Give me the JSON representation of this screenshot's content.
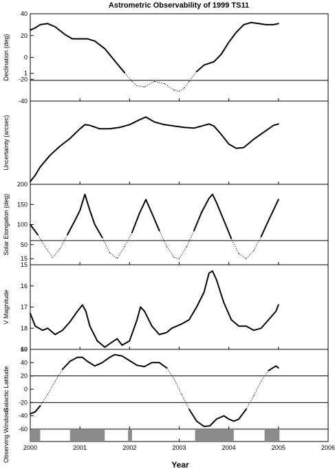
{
  "title": "Astrometric Observability of 1999 TS11",
  "xlabel": "Year",
  "x_ticks": [
    "2000",
    "2001",
    "2002",
    "2003",
    "2004",
    "2005",
    "2006"
  ],
  "chart_data": [
    {
      "type": "line",
      "ylabel": "Declination (deg)",
      "ylim": [
        -40,
        40
      ],
      "yticks": [
        40,
        20,
        0,
        -20,
        -40
      ],
      "threshold": [
        -21
      ],
      "series": [
        {
          "x": [
            2000.0,
            2000.1,
            2000.2,
            2000.35,
            2000.5,
            2000.7,
            2000.85,
            2001.0,
            2001.15,
            2001.3,
            2001.5,
            2001.7,
            2001.9,
            2002.05,
            2002.15,
            2002.3,
            2002.5,
            2002.7,
            2002.9,
            2003.0,
            2003.1,
            2003.2,
            2003.35,
            2003.5,
            2003.7,
            2003.85,
            2004.0,
            2004.15,
            2004.3,
            2004.45,
            2004.6,
            2004.75,
            2004.9,
            2005.0
          ],
          "y": [
            25,
            27,
            30,
            31,
            28,
            21,
            17,
            17,
            17,
            15,
            8,
            -3,
            -14,
            -22,
            -26,
            -27,
            -22,
            -24,
            -30,
            -31,
            -28,
            -22,
            -13,
            -7,
            -4,
            3,
            14,
            23,
            30,
            32,
            31,
            30,
            30,
            31
          ]
        }
      ]
    },
    {
      "type": "line",
      "ylabel": "Uncertainty (arcsec)",
      "ylim": [
        -0.6,
        0.6
      ],
      "yticks": [
        1
      ],
      "threshold": [],
      "series": [
        {
          "x": [
            2000.0,
            2000.1,
            2000.2,
            2000.4,
            2000.6,
            2000.8,
            2001.0,
            2001.1,
            2001.2,
            2001.4,
            2001.6,
            2001.8,
            2002.0,
            2002.2,
            2002.33,
            2002.5,
            2002.7,
            2002.9,
            2003.1,
            2003.3,
            2003.5,
            2003.6,
            2003.7,
            2003.8,
            2003.9,
            2004.0,
            2004.15,
            2004.3,
            2004.5,
            2004.7,
            2004.9,
            2005.0
          ],
          "y": [
            -0.56,
            -0.47,
            -0.35,
            -0.18,
            -0.05,
            0.06,
            0.2,
            0.26,
            0.25,
            0.2,
            0.2,
            0.22,
            0.26,
            0.33,
            0.37,
            0.3,
            0.26,
            0.24,
            0.22,
            0.21,
            0.25,
            0.27,
            0.24,
            0.16,
            0.07,
            -0.02,
            -0.08,
            -0.07,
            0.05,
            0.15,
            0.25,
            0.27
          ]
        }
      ]
    },
    {
      "type": "line",
      "ylabel": "Solar Elongation (deg)",
      "ylim": [
        0,
        200
      ],
      "yticks": [
        200,
        150,
        100,
        50,
        15
      ],
      "threshold": [
        60
      ],
      "series": [
        {
          "x": [
            2000.0,
            2000.15,
            2000.3,
            2000.45,
            2000.6,
            2000.75,
            2000.9,
            2001.0,
            2001.1,
            2001.2,
            2001.3,
            2001.45,
            2001.6,
            2001.75,
            2001.9,
            2002.05,
            2002.2,
            2002.33,
            2002.45,
            2002.6,
            2002.75,
            2002.9,
            2003.0,
            2003.15,
            2003.3,
            2003.45,
            2003.6,
            2003.67,
            2003.75,
            2003.9,
            2004.05,
            2004.2,
            2004.35,
            2004.5,
            2004.65,
            2004.8,
            2005.0
          ],
          "y": [
            100,
            75,
            45,
            18,
            40,
            75,
            110,
            135,
            175,
            135,
            100,
            68,
            30,
            16,
            45,
            80,
            128,
            162,
            128,
            85,
            45,
            18,
            15,
            45,
            85,
            130,
            165,
            175,
            155,
            110,
            65,
            28,
            15,
            35,
            70,
            110,
            162
          ]
        }
      ]
    },
    {
      "type": "line",
      "ylabel": "V Magnitude",
      "ylim": [
        19,
        15
      ],
      "yticks": [
        15,
        16,
        17,
        18,
        19
      ],
      "threshold": [
        19
      ],
      "series": [
        {
          "x": [
            2000.0,
            2000.1,
            2000.25,
            2000.35,
            2000.5,
            2000.65,
            2000.8,
            2000.95,
            2001.05,
            2001.12,
            2001.2,
            2001.35,
            2001.5,
            2001.62,
            2001.75,
            2001.85,
            2002.0,
            2002.15,
            2002.22,
            2002.3,
            2002.45,
            2002.6,
            2002.75,
            2002.85,
            2002.95,
            2003.05,
            2003.2,
            2003.35,
            2003.5,
            2003.6,
            2003.67,
            2003.75,
            2003.9,
            2004.05,
            2004.2,
            2004.35,
            2004.5,
            2004.65,
            2004.8,
            2004.95,
            2005.0
          ],
          "y": [
            17.3,
            17.9,
            18.1,
            18.0,
            18.3,
            18.1,
            17.7,
            17.2,
            16.9,
            17.2,
            17.9,
            18.6,
            18.9,
            18.7,
            18.5,
            18.8,
            18.6,
            17.6,
            17.0,
            17.2,
            17.9,
            18.3,
            18.2,
            18.0,
            17.9,
            17.8,
            17.6,
            17.0,
            16.3,
            15.4,
            15.3,
            15.7,
            16.8,
            17.6,
            17.9,
            17.9,
            18.1,
            18.0,
            17.6,
            17.2,
            16.9
          ]
        }
      ]
    },
    {
      "type": "line",
      "ylabel": "Galactic Latitude",
      "ylim": [
        -60,
        60
      ],
      "yticks": [
        60,
        40,
        20,
        0,
        -20,
        -40,
        -60
      ],
      "threshold": [
        20,
        -20
      ],
      "series": [
        {
          "x": [
            2000.0,
            2000.1,
            2000.2,
            2000.35,
            2000.5,
            2000.65,
            2000.8,
            2000.95,
            2001.05,
            2001.15,
            2001.3,
            2001.45,
            2001.6,
            2001.7,
            2001.85,
            2002.0,
            2002.15,
            2002.3,
            2002.45,
            2002.6,
            2002.75,
            2002.9,
            2003.05,
            2003.2,
            2003.35,
            2003.5,
            2003.62,
            2003.75,
            2003.9,
            2004.0,
            2004.1,
            2004.2,
            2004.35,
            2004.5,
            2004.65,
            2004.8,
            2004.95,
            2005.0
          ],
          "y": [
            -37,
            -34,
            -25,
            -8,
            12,
            30,
            42,
            48,
            48,
            42,
            35,
            40,
            48,
            52,
            50,
            43,
            36,
            34,
            40,
            40,
            32,
            15,
            -8,
            -30,
            -48,
            -56,
            -55,
            -45,
            -40,
            -45,
            -48,
            -45,
            -30,
            -10,
            12,
            28,
            35,
            32
          ]
        }
      ]
    },
    {
      "type": "bar",
      "ylabel": "Observing Windows",
      "ylim": [
        0,
        1
      ],
      "windows": [
        [
          2000.0,
          2000.2
        ],
        [
          2000.8,
          2001.5
        ],
        [
          2001.97,
          2002.05
        ],
        [
          2003.32,
          2004.1
        ],
        [
          2004.72,
          2005.02
        ]
      ]
    }
  ]
}
